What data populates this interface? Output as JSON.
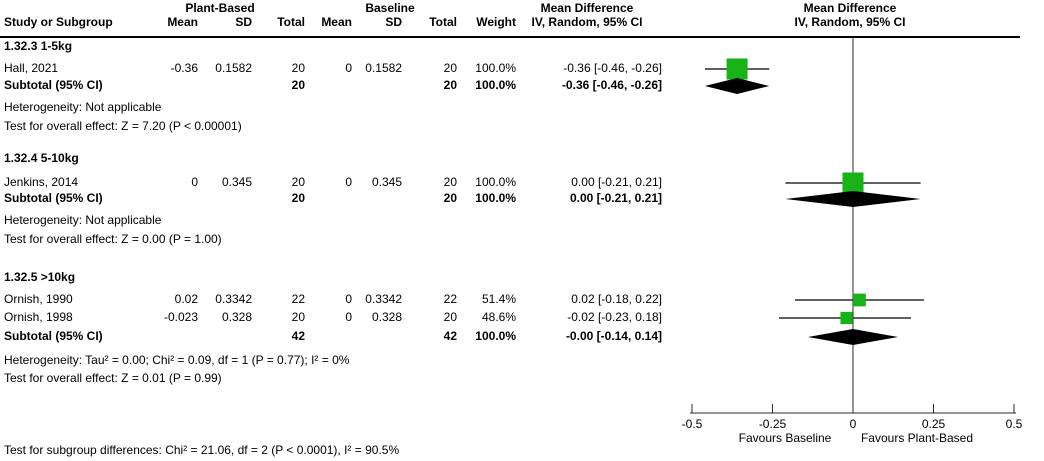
{
  "header": {
    "group1_label": "Plant-Based",
    "group2_label": "Baseline",
    "stats_title": "Mean Difference",
    "stats_method": "IV, Random, 95% CI",
    "plot_title": "Mean Difference",
    "plot_method": "IV, Random, 95% CI",
    "col_study": "Study or Subgroup",
    "col_mean": "Mean",
    "col_sd": "SD",
    "col_total": "Total",
    "col_weight": "Weight"
  },
  "groups": [
    {
      "label": "1.32.3 1-5kg",
      "studies": [
        {
          "name": "Hall, 2021",
          "mean1": "-0.36",
          "sd1": "0.1582",
          "total1": "20",
          "mean2": "0",
          "sd2": "0.1582",
          "total2": "20",
          "weight": "100.0%",
          "ci_text": "-0.36 [-0.46, -0.26]",
          "md": -0.36,
          "lo": -0.46,
          "hi": -0.26,
          "weight_pct": 100.0
        }
      ],
      "subtotal": {
        "label": "Subtotal (95% CI)",
        "total1": "20",
        "total2": "20",
        "weight": "100.0%",
        "ci_text": "-0.36 [-0.46, -0.26]",
        "md": -0.36,
        "lo": -0.46,
        "hi": -0.26
      },
      "heterogeneity": "Heterogeneity: Not applicable",
      "overall_test": "Test for overall effect: Z = 7.20 (P < 0.00001)"
    },
    {
      "label": "1.32.4 5-10kg",
      "studies": [
        {
          "name": "Jenkins, 2014",
          "mean1": "0",
          "sd1": "0.345",
          "total1": "20",
          "mean2": "0",
          "sd2": "0.345",
          "total2": "20",
          "weight": "100.0%",
          "ci_text": "0.00 [-0.21, 0.21]",
          "md": 0.0,
          "lo": -0.21,
          "hi": 0.21,
          "weight_pct": 100.0
        }
      ],
      "subtotal": {
        "label": "Subtotal (95% CI)",
        "total1": "20",
        "total2": "20",
        "weight": "100.0%",
        "ci_text": "0.00 [-0.21, 0.21]",
        "md": 0.0,
        "lo": -0.21,
        "hi": 0.21
      },
      "heterogeneity": "Heterogeneity: Not applicable",
      "overall_test": "Test for overall effect: Z = 0.00 (P = 1.00)"
    },
    {
      "label": "1.32.5 >10kg",
      "studies": [
        {
          "name": "Ornish, 1990",
          "mean1": "0.02",
          "sd1": "0.3342",
          "total1": "22",
          "mean2": "0",
          "sd2": "0.3342",
          "total2": "22",
          "weight": "51.4%",
          "ci_text": "0.02 [-0.18, 0.22]",
          "md": 0.02,
          "lo": -0.18,
          "hi": 0.22,
          "weight_pct": 51.4
        },
        {
          "name": "Ornish, 1998",
          "mean1": "-0.023",
          "sd1": "0.328",
          "total1": "20",
          "mean2": "0",
          "sd2": "0.328",
          "total2": "20",
          "weight": "48.6%",
          "ci_text": "-0.02 [-0.23, 0.18]",
          "md": -0.02,
          "lo": -0.23,
          "hi": 0.18,
          "weight_pct": 48.6
        }
      ],
      "subtotal": {
        "label": "Subtotal (95% CI)",
        "total1": "42",
        "total2": "42",
        "weight": "100.0%",
        "ci_text": "-0.00 [-0.14, 0.14]",
        "md": -0.0,
        "lo": -0.14,
        "hi": 0.14
      },
      "heterogeneity": "Heterogeneity: Tau² = 0.00; Chi² = 0.09, df = 1 (P = 0.77); I² = 0%",
      "overall_test": "Test for overall effect: Z = 0.01 (P = 0.99)"
    }
  ],
  "axis": {
    "ticks": [
      -0.5,
      -0.25,
      0,
      0.25,
      0.5
    ],
    "tick_labels": [
      "-0.5",
      "-0.25",
      "0",
      "0.25",
      "0.5"
    ],
    "favours_left": "Favours Baseline",
    "favours_right": "Favours Plant-Based"
  },
  "footer": {
    "subgroup_test": "Test for subgroup differences: Chi² = 21.06, df = 2 (P < 0.0001), I² = 90.5%"
  },
  "colors": {
    "square_green": "#16B216",
    "diamond_black": "#000000",
    "line_black": "#2b2b2b"
  },
  "chart_data": {
    "type": "forest",
    "effect_measure": "Mean Difference",
    "method": "IV, Random, 95% CI",
    "xlim": [
      -0.5,
      0.5
    ],
    "xticks": [
      -0.5,
      -0.25,
      0,
      0.25,
      0.5
    ],
    "x_left_label": "Favours Baseline",
    "x_right_label": "Favours Plant-Based",
    "subgroups": [
      {
        "name": "1.32.3 1-5kg",
        "studies": [
          {
            "study": "Hall, 2021",
            "plant_based": {
              "mean": -0.36,
              "sd": 0.1582,
              "total": 20
            },
            "baseline": {
              "mean": 0,
              "sd": 0.1582,
              "total": 20
            },
            "weight_pct": 100.0,
            "md": -0.36,
            "ci": [
              -0.46,
              -0.26
            ]
          }
        ],
        "subtotal": {
          "total_plant_based": 20,
          "total_baseline": 20,
          "weight_pct": 100.0,
          "md": -0.36,
          "ci": [
            -0.46,
            -0.26
          ]
        },
        "heterogeneity": "Not applicable",
        "overall_effect": "Z = 7.20 (P < 0.00001)"
      },
      {
        "name": "1.32.4 5-10kg",
        "studies": [
          {
            "study": "Jenkins, 2014",
            "plant_based": {
              "mean": 0,
              "sd": 0.345,
              "total": 20
            },
            "baseline": {
              "mean": 0,
              "sd": 0.345,
              "total": 20
            },
            "weight_pct": 100.0,
            "md": 0.0,
            "ci": [
              -0.21,
              0.21
            ]
          }
        ],
        "subtotal": {
          "total_plant_based": 20,
          "total_baseline": 20,
          "weight_pct": 100.0,
          "md": 0.0,
          "ci": [
            -0.21,
            0.21
          ]
        },
        "heterogeneity": "Not applicable",
        "overall_effect": "Z = 0.00 (P = 1.00)"
      },
      {
        "name": "1.32.5 >10kg",
        "studies": [
          {
            "study": "Ornish, 1990",
            "plant_based": {
              "mean": 0.02,
              "sd": 0.3342,
              "total": 22
            },
            "baseline": {
              "mean": 0,
              "sd": 0.3342,
              "total": 22
            },
            "weight_pct": 51.4,
            "md": 0.02,
            "ci": [
              -0.18,
              0.22
            ]
          },
          {
            "study": "Ornish, 1998",
            "plant_based": {
              "mean": -0.023,
              "sd": 0.328,
              "total": 20
            },
            "baseline": {
              "mean": 0,
              "sd": 0.328,
              "total": 20
            },
            "weight_pct": 48.6,
            "md": -0.02,
            "ci": [
              -0.23,
              0.18
            ]
          }
        ],
        "subtotal": {
          "total_plant_based": 42,
          "total_baseline": 42,
          "weight_pct": 100.0,
          "md": -0.0,
          "ci": [
            -0.14,
            0.14
          ]
        },
        "heterogeneity": "Tau² = 0.00; Chi² = 0.09, df = 1 (P = 0.77); I² = 0%",
        "overall_effect": "Z = 0.01 (P = 0.99)"
      }
    ],
    "subgroup_differences": "Chi² = 21.06, df = 2 (P < 0.0001), I² = 90.5%"
  }
}
